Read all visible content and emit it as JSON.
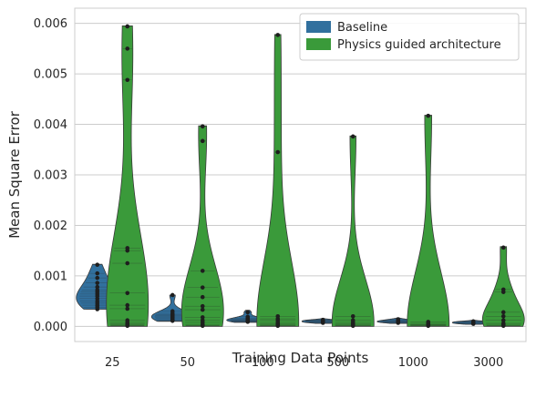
{
  "chart_data": {
    "type": "violin",
    "xlabel": "Training Data Points",
    "ylabel": "Mean Square Error",
    "categories": [
      "25",
      "50",
      "100",
      "500",
      "1000",
      "3000"
    ],
    "ylim": [
      -0.0003,
      0.0063
    ],
    "yticks": [
      0.0,
      0.001,
      0.002,
      0.003,
      0.004,
      0.005,
      0.006
    ],
    "ytick_labels": [
      "0.000",
      "0.001",
      "0.002",
      "0.003",
      "0.004",
      "0.005",
      "0.006"
    ],
    "grid": true,
    "legend_placement": "top-right",
    "series": [
      {
        "name": "Baseline",
        "color": "#31709e",
        "groups": [
          {
            "category": "25",
            "min": 0.00034,
            "max": 0.00123,
            "points": [
              0.00034,
              0.00038,
              0.00042,
              0.00046,
              0.0005,
              0.00055,
              0.0006,
              0.00064,
              0.00068,
              0.00072,
              0.00078,
              0.00086,
              0.00096,
              0.00105,
              0.00122
            ]
          },
          {
            "category": "50",
            "min": 0.0001,
            "max": 0.00062,
            "points": [
              0.00011,
              0.00013,
              0.00015,
              0.00017,
              0.00019,
              0.00021,
              0.00023,
              0.00026,
              0.0003,
              0.00062
            ]
          },
          {
            "category": "100",
            "min": 8e-05,
            "max": 0.00032,
            "points": [
              9e-05,
              0.0001,
              0.00011,
              0.00012,
              0.00013,
              0.00014,
              0.00016,
              0.00019,
              0.00028
            ]
          },
          {
            "category": "500",
            "min": 6e-05,
            "max": 0.00016,
            "points": [
              7e-05,
              8e-05,
              9e-05,
              0.0001,
              0.00011,
              0.00012,
              0.00013
            ]
          },
          {
            "category": "1000",
            "min": 6e-05,
            "max": 0.00017,
            "points": [
              7e-05,
              8e-05,
              9e-05,
              0.0001,
              0.00011,
              0.00012,
              0.00014
            ]
          },
          {
            "category": "3000",
            "min": 4e-05,
            "max": 0.00012,
            "points": [
              5e-05,
              6e-05,
              7e-05,
              8e-05,
              9e-05,
              0.0001
            ]
          }
        ]
      },
      {
        "name": "Physics guided architecture",
        "color": "#3a9a3a",
        "groups": [
          {
            "category": "25",
            "min": 0.0,
            "max": 0.00595,
            "points": [
              1e-05,
              2e-05,
              3e-05,
              5e-05,
              8e-05,
              0.00012,
              0.00035,
              0.00042,
              0.00066,
              0.00125,
              0.0015,
              0.00155,
              0.00488,
              0.0055,
              0.00594
            ]
          },
          {
            "category": "50",
            "min": 0.0,
            "max": 0.00397,
            "points": [
              1e-05,
              2e-05,
              4e-05,
              8e-05,
              0.00012,
              0.00018,
              0.00033,
              0.0004,
              0.00058,
              0.00077,
              0.0011,
              0.00367,
              0.00396
            ]
          },
          {
            "category": "100",
            "min": 0.0,
            "max": 0.00578,
            "points": [
              1e-05,
              2e-05,
              3e-05,
              5e-05,
              8e-05,
              0.00012,
              0.00015,
              0.0002,
              0.00345,
              0.00577
            ]
          },
          {
            "category": "500",
            "min": 0.0,
            "max": 0.00377,
            "points": [
              1e-05,
              2e-05,
              3e-05,
              5e-05,
              8e-05,
              0.00012,
              0.0002,
              0.00376
            ]
          },
          {
            "category": "1000",
            "min": 0.0,
            "max": 0.00418,
            "points": [
              1e-05,
              2e-05,
              3e-05,
              4e-05,
              6e-05,
              9e-05,
              0.00417
            ]
          },
          {
            "category": "3000",
            "min": 0.0,
            "max": 0.00158,
            "points": [
              1e-05,
              2e-05,
              4e-05,
              6e-05,
              0.00012,
              0.0002,
              0.00028,
              0.00068,
              0.00073,
              0.00156
            ]
          }
        ]
      }
    ]
  }
}
